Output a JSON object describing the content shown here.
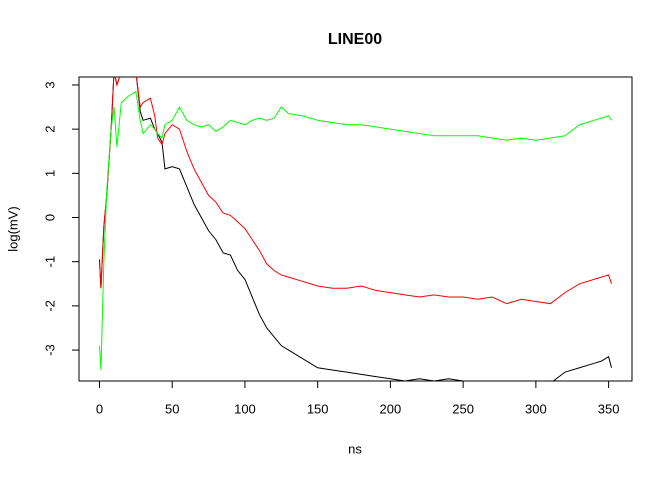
{
  "chart_data": {
    "type": "line",
    "title": "LINE00",
    "xlabel": "ns",
    "ylabel": "log(mV)",
    "x": [
      0,
      1,
      3,
      5,
      8,
      10,
      12,
      15,
      20,
      25,
      28,
      30,
      35,
      38,
      40,
      43,
      45,
      50,
      55,
      60,
      65,
      70,
      75,
      80,
      85,
      90,
      95,
      100,
      105,
      110,
      115,
      120,
      125,
      130,
      140,
      150,
      160,
      170,
      180,
      190,
      200,
      210,
      220,
      230,
      240,
      250,
      260,
      270,
      280,
      290,
      300,
      310,
      320,
      330,
      340,
      345,
      350,
      352
    ],
    "series": [
      {
        "color": "#000000",
        "values": [
          -0.95,
          -1.6,
          -0.2,
          0.5,
          2.0,
          3.3,
          3.0,
          3.3,
          3.3,
          3.3,
          2.4,
          2.2,
          2.25,
          2.0,
          1.9,
          1.7,
          1.1,
          1.15,
          1.1,
          0.7,
          0.3,
          0.0,
          -0.3,
          -0.5,
          -0.8,
          -0.85,
          -1.2,
          -1.4,
          -1.8,
          -2.2,
          -2.5,
          -2.7,
          -2.9,
          -3.0,
          -3.2,
          -3.4,
          -3.45,
          -3.5,
          -3.55,
          -3.6,
          -3.65,
          -3.7,
          -3.65,
          -3.7,
          -3.65,
          -3.7,
          -3.7,
          -3.75,
          -3.7,
          -3.75,
          -3.7,
          -3.75,
          -3.5,
          -3.4,
          -3.3,
          -3.25,
          -3.15,
          -3.4
        ]
      },
      {
        "color": "#ff0000",
        "values": [
          -1.0,
          -1.6,
          -0.2,
          0.5,
          2.0,
          3.3,
          3.0,
          3.3,
          3.3,
          3.3,
          2.5,
          2.6,
          2.7,
          2.3,
          1.8,
          1.65,
          1.9,
          2.1,
          2.0,
          1.5,
          1.1,
          0.8,
          0.5,
          0.35,
          0.1,
          0.05,
          -0.1,
          -0.25,
          -0.5,
          -0.75,
          -1.05,
          -1.2,
          -1.3,
          -1.35,
          -1.45,
          -1.55,
          -1.6,
          -1.6,
          -1.55,
          -1.65,
          -1.7,
          -1.75,
          -1.8,
          -1.75,
          -1.8,
          -1.8,
          -1.85,
          -1.8,
          -1.95,
          -1.85,
          -1.9,
          -1.95,
          -1.7,
          -1.5,
          -1.4,
          -1.35,
          -1.3,
          -1.5
        ]
      },
      {
        "color": "#00ff00",
        "values": [
          -2.9,
          -3.45,
          -1.0,
          0.6,
          2.0,
          2.5,
          1.6,
          2.6,
          2.75,
          2.85,
          2.2,
          1.9,
          2.1,
          2.0,
          1.9,
          1.8,
          2.1,
          2.2,
          2.5,
          2.2,
          2.1,
          2.05,
          2.1,
          1.95,
          2.05,
          2.2,
          2.15,
          2.1,
          2.2,
          2.25,
          2.2,
          2.25,
          2.5,
          2.35,
          2.3,
          2.2,
          2.15,
          2.1,
          2.1,
          2.05,
          2.0,
          1.95,
          1.9,
          1.85,
          1.85,
          1.85,
          1.85,
          1.8,
          1.75,
          1.8,
          1.75,
          1.8,
          1.85,
          2.1,
          2.2,
          2.25,
          2.3,
          2.2
        ]
      }
    ],
    "xlim": [
      -14.08,
      366.08
    ],
    "ylim": [
      -3.7,
      3.18
    ],
    "xticks": [
      0,
      50,
      100,
      150,
      200,
      250,
      300,
      350
    ],
    "yticks": [
      -3,
      -2,
      -1,
      0,
      1,
      2,
      3
    ]
  }
}
